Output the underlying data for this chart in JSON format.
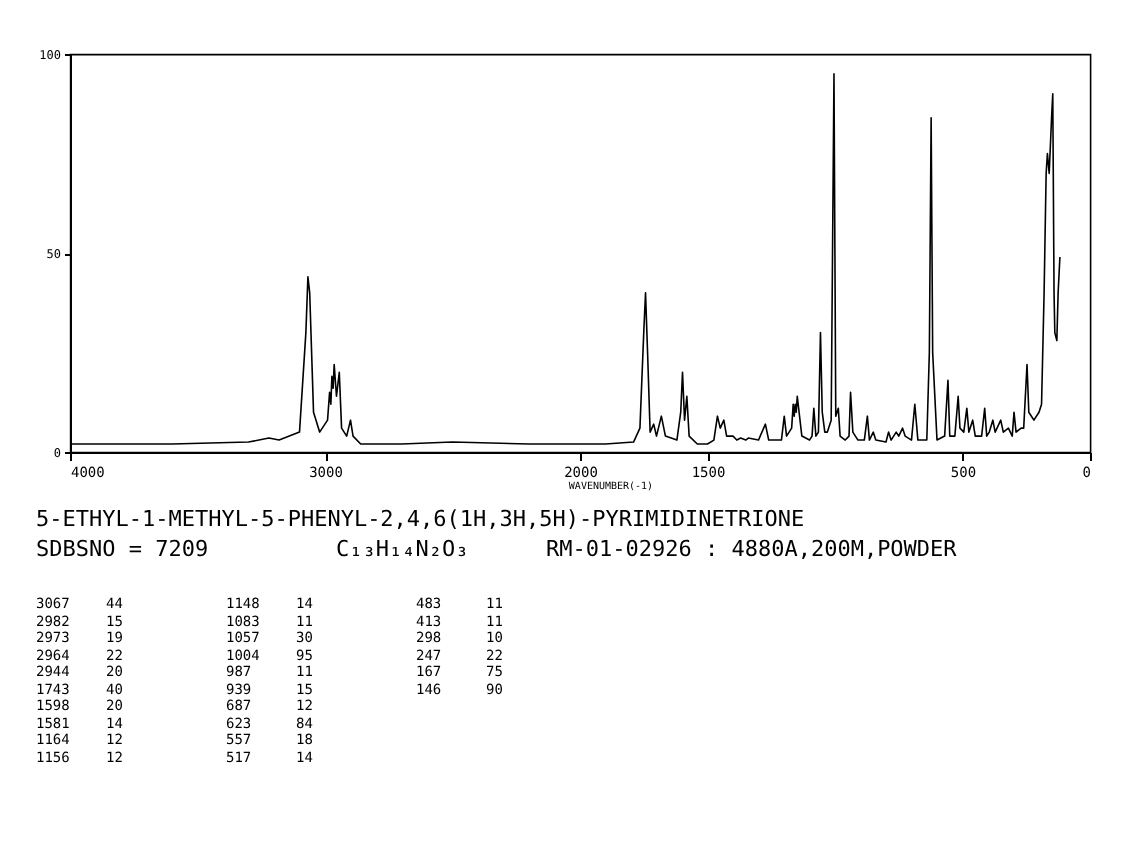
{
  "chart_data": {
    "type": "line",
    "title": "5-ETHYL-1-METHYL-5-PHENYL-2,4,6(1H,3H,5H)-PYRIMIDINETRIONE",
    "xlabel": "WAVENUMBER(-1)",
    "xlim": [
      4000,
      0
    ],
    "xticks": [
      4000,
      3000,
      2000,
      1500,
      500,
      0
    ],
    "ylim": [
      0,
      100
    ],
    "yticks": [
      0,
      50,
      100
    ],
    "grid": false,
    "series": [
      {
        "color": "#000000",
        "x": [
          4000,
          3600,
          3300,
          3220,
          3180,
          3100,
          3075,
          3067,
          3060,
          3045,
          3021,
          2990,
          2982,
          2977,
          2973,
          2968,
          2964,
          2955,
          2944,
          2935,
          2915,
          2900,
          2890,
          2860,
          2700,
          2500,
          2200,
          1900,
          1790,
          1765,
          1750,
          1743,
          1735,
          1725,
          1711,
          1700,
          1681,
          1665,
          1620,
          1605,
          1598,
          1590,
          1581,
          1572,
          1540,
          1500,
          1475,
          1461,
          1450,
          1436,
          1425,
          1400,
          1385,
          1370,
          1350,
          1340,
          1300,
          1273,
          1260,
          1210,
          1199,
          1190,
          1170,
          1164,
          1160,
          1156,
          1152,
          1148,
          1130,
          1100,
          1090,
          1083,
          1075,
          1065,
          1057,
          1050,
          1040,
          1030,
          1015,
          1004,
          997,
          987,
          980,
          960,
          945,
          939,
          930,
          910,
          885,
          873,
          865,
          850,
          840,
          800,
          790,
          780,
          760,
          750,
          735,
          725,
          700,
          687,
          675,
          640,
          630,
          623,
          617,
          600,
          570,
          557,
          550,
          530,
          517,
          510,
          495,
          483,
          475,
          460,
          450,
          425,
          413,
          405,
          395,
          381,
          372,
          350,
          340,
          320,
          305,
          298,
          290,
          270,
          260,
          247,
          240,
          220,
          200,
          190,
          180,
          172,
          167,
          160,
          150,
          146,
          141,
          138,
          130,
          125,
          118
        ],
        "values": [
          2,
          2,
          2.5,
          3.5,
          3,
          5,
          30,
          44,
          40,
          10,
          5,
          8,
          15,
          12,
          19,
          16,
          22,
          14,
          20,
          6,
          4,
          8,
          4,
          2,
          2,
          2.5,
          2,
          2,
          2.5,
          6,
          30,
          40,
          25,
          5,
          7,
          4,
          9,
          4,
          3,
          10,
          20,
          8,
          14,
          4,
          2,
          2,
          3,
          9,
          6,
          8,
          4,
          4,
          3,
          3.5,
          3,
          3.5,
          3,
          7,
          3,
          3,
          9,
          4,
          6,
          12,
          9,
          12,
          10,
          14,
          4,
          3,
          4,
          11,
          4,
          5,
          30,
          10,
          5,
          5,
          8,
          95,
          9,
          11,
          4,
          3,
          4,
          15,
          5,
          3,
          3,
          9,
          3,
          5,
          3,
          2.5,
          5,
          3,
          5,
          4,
          6,
          4,
          3,
          12,
          3,
          3,
          25,
          84,
          25,
          3,
          4,
          18,
          4,
          4,
          14,
          6,
          5,
          11,
          5,
          8,
          4,
          4,
          11,
          4,
          5,
          8,
          5,
          8,
          5,
          6,
          4,
          10,
          5,
          6,
          6,
          22,
          10,
          8,
          10,
          12,
          40,
          70,
          75,
          70,
          85,
          90,
          40,
          30,
          28,
          40,
          49
        ]
      }
    ],
    "annotations": [
      "SDBSNO = 7209",
      "C₁₃H₁₄N₂O₃",
      "RM-01-02926 : 4880A,200M,POWDER",
      "3067 44",
      "2982 15",
      "2973 19",
      "2964 22",
      "2944 20",
      "1743 40",
      "1598 20",
      "1581 14",
      "1164 12",
      "1156 12",
      "1148 14",
      "1083 11",
      "1057 30",
      "1004 95",
      "987 11",
      "939 15",
      "687 12",
      "623 84",
      "557 18",
      "517 14",
      "483 11",
      "413 11",
      "298 10",
      "247 22",
      "167 75",
      "146 90"
    ]
  }
}
